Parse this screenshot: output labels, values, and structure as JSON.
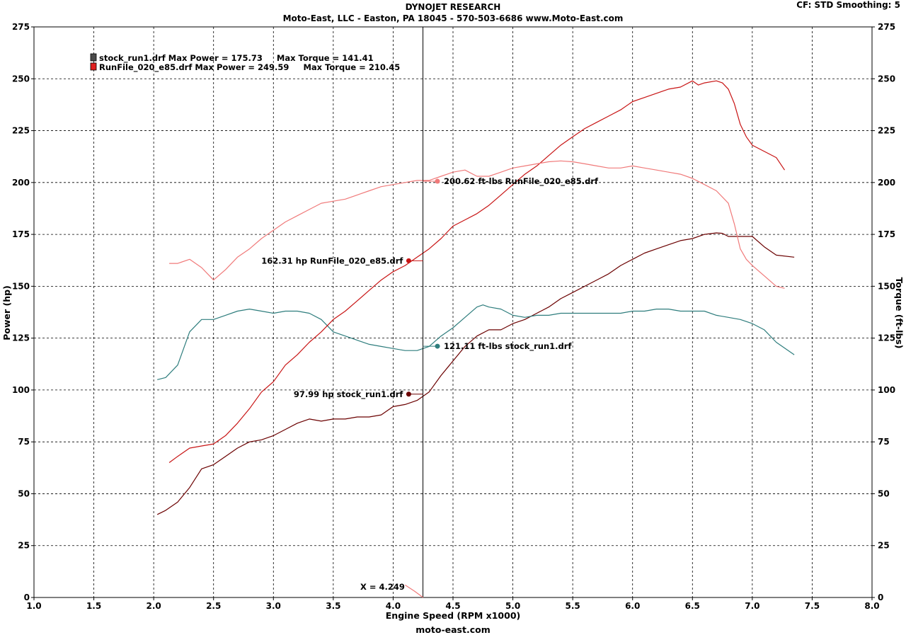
{
  "header": {
    "title": "DYNOJET RESEARCH",
    "subtitle": "Moto-East, LLC - Easton, PA 18045 - 570-503-6686 www.Moto-East.com",
    "settings": "CF: STD  Smoothing: 5"
  },
  "footer": {
    "site": "moto-east.com"
  },
  "colors": {
    "stock_power": "#6b0000",
    "stock_torque": "#2e7d7d",
    "e85_power": "#c81414",
    "e85_torque": "#f07a7a",
    "grid": "#000000"
  },
  "chart_data": {
    "type": "line",
    "xlabel": "Engine Speed (RPM x1000)",
    "ylabel": "Power (hp)",
    "y2label": "Torque (ft-lbs)",
    "xlim": [
      1.0,
      8.0
    ],
    "ylim": [
      0,
      275
    ],
    "y2lim": [
      0,
      275
    ],
    "x_ticks": [
      "1.0",
      "1.5",
      "2.0",
      "2.5",
      "3.0",
      "3.5",
      "4.0",
      "4.5",
      "5.0",
      "5.5",
      "6.0",
      "6.5",
      "7.0",
      "7.5",
      "8.0"
    ],
    "y_ticks": [
      "0",
      "25",
      "50",
      "75",
      "100",
      "125",
      "150",
      "175",
      "200",
      "225",
      "250",
      "275"
    ],
    "grid": true,
    "legend_position": "top-left",
    "legend": [
      {
        "text": "stock_run1.drf Max Power = 175.73     Max Torque = 141.41"
      },
      {
        "text": "RunFile_020_e85.drf Max Power = 249.59     Max Torque = 210.45"
      }
    ],
    "cursor": {
      "x": 4.249,
      "label": "X = 4.249"
    },
    "annotations": [
      {
        "text": "200.62 ft-lbs RunFile_020_e85.drf",
        "x": 4.37,
        "y": 200.6,
        "side": "right",
        "series": "e85_torque"
      },
      {
        "text": "162.31 hp RunFile_020_e85.drf",
        "x": 4.13,
        "y": 162.3,
        "side": "left",
        "series": "e85_power"
      },
      {
        "text": "121.11 ft-lbs stock_run1.drf",
        "x": 4.37,
        "y": 121.1,
        "side": "right",
        "series": "stock_torque"
      },
      {
        "text": "97.99 hp stock_run1.drf",
        "x": 4.13,
        "y": 98.0,
        "side": "left",
        "series": "stock_power"
      }
    ],
    "series": [
      {
        "name": "stock_run1.drf",
        "key": "stock_power",
        "x": [
          2.03,
          2.1,
          2.2,
          2.3,
          2.4,
          2.5,
          2.6,
          2.7,
          2.8,
          2.9,
          3.0,
          3.1,
          3.2,
          3.3,
          3.4,
          3.5,
          3.6,
          3.7,
          3.8,
          3.9,
          4.0,
          4.1,
          4.2,
          4.3,
          4.4,
          4.5,
          4.6,
          4.7,
          4.8,
          4.9,
          5.0,
          5.1,
          5.2,
          5.3,
          5.4,
          5.5,
          5.6,
          5.7,
          5.8,
          5.9,
          6.0,
          6.1,
          6.2,
          6.3,
          6.4,
          6.5,
          6.6,
          6.7,
          6.75,
          6.8,
          6.9,
          7.0,
          7.1,
          7.2,
          7.35
        ],
        "y": [
          40,
          42,
          46,
          53,
          62,
          64,
          68,
          72,
          75,
          76,
          78,
          81,
          84,
          86,
          85,
          86,
          86,
          87,
          87,
          88,
          92,
          93,
          95,
          99,
          107,
          114,
          121,
          126,
          129,
          129,
          132,
          134,
          137,
          140,
          144,
          147,
          150,
          153,
          156,
          160,
          163,
          166,
          168,
          170,
          172,
          173,
          175,
          175.7,
          175.5,
          174,
          174,
          174,
          169,
          165,
          164
        ]
      },
      {
        "name": "stock_run1.drf",
        "key": "stock_torque",
        "x": [
          2.03,
          2.1,
          2.2,
          2.3,
          2.4,
          2.5,
          2.6,
          2.7,
          2.8,
          2.9,
          3.0,
          3.1,
          3.2,
          3.3,
          3.4,
          3.5,
          3.6,
          3.7,
          3.8,
          3.9,
          4.0,
          4.1,
          4.2,
          4.3,
          4.4,
          4.5,
          4.6,
          4.7,
          4.75,
          4.8,
          4.9,
          5.0,
          5.1,
          5.2,
          5.3,
          5.4,
          5.5,
          5.6,
          5.7,
          5.8,
          5.9,
          6.0,
          6.1,
          6.2,
          6.3,
          6.4,
          6.5,
          6.6,
          6.7,
          6.8,
          6.9,
          7.0,
          7.1,
          7.2,
          7.35
        ],
        "y": [
          105,
          106,
          112,
          128,
          134,
          134,
          136,
          138,
          139,
          138,
          137,
          138,
          138,
          137,
          134,
          128,
          126,
          124,
          122,
          121,
          120,
          119,
          119,
          121,
          126,
          130,
          135,
          140,
          141,
          140,
          139,
          136,
          135,
          136,
          136,
          137,
          137,
          137,
          137,
          137,
          137,
          138,
          138,
          139,
          139,
          138,
          138,
          138,
          136,
          135,
          134,
          132,
          129,
          123,
          117
        ]
      },
      {
        "name": "RunFile_020_e85.drf",
        "key": "e85_power",
        "x": [
          2.13,
          2.2,
          2.3,
          2.4,
          2.5,
          2.6,
          2.7,
          2.8,
          2.9,
          3.0,
          3.1,
          3.2,
          3.3,
          3.4,
          3.5,
          3.6,
          3.7,
          3.8,
          3.9,
          4.0,
          4.1,
          4.2,
          4.3,
          4.4,
          4.5,
          4.6,
          4.7,
          4.8,
          4.9,
          5.0,
          5.1,
          5.2,
          5.3,
          5.4,
          5.5,
          5.6,
          5.7,
          5.8,
          5.9,
          6.0,
          6.1,
          6.2,
          6.3,
          6.4,
          6.5,
          6.55,
          6.6,
          6.7,
          6.75,
          6.8,
          6.85,
          6.9,
          6.95,
          7.0,
          7.1,
          7.2,
          7.27
        ],
        "y": [
          65,
          68,
          72,
          73,
          74,
          78,
          84,
          91,
          99,
          104,
          112,
          117,
          123,
          128,
          134,
          138,
          143,
          148,
          153,
          157,
          160,
          164,
          168,
          173,
          179,
          182,
          185,
          189,
          194,
          199,
          204,
          208,
          213,
          218,
          222,
          226,
          229,
          232,
          235,
          239,
          241,
          243,
          245,
          246,
          249,
          247,
          248,
          249,
          248,
          245,
          238,
          228,
          222,
          218,
          215,
          212,
          206
        ]
      },
      {
        "name": "RunFile_020_e85.drf",
        "key": "e85_torque",
        "x": [
          2.13,
          2.2,
          2.3,
          2.4,
          2.5,
          2.6,
          2.7,
          2.8,
          2.9,
          3.0,
          3.1,
          3.2,
          3.3,
          3.4,
          3.5,
          3.6,
          3.7,
          3.8,
          3.9,
          4.0,
          4.1,
          4.2,
          4.3,
          4.4,
          4.5,
          4.6,
          4.7,
          4.8,
          4.9,
          5.0,
          5.1,
          5.2,
          5.3,
          5.4,
          5.5,
          5.6,
          5.7,
          5.8,
          5.9,
          6.0,
          6.1,
          6.2,
          6.3,
          6.4,
          6.5,
          6.6,
          6.7,
          6.8,
          6.85,
          6.9,
          6.95,
          7.0,
          7.1,
          7.2,
          7.27
        ],
        "y": [
          161,
          161,
          163,
          159,
          153,
          158,
          164,
          168,
          173,
          177,
          181,
          184,
          187,
          190,
          191,
          192,
          194,
          196,
          198,
          199,
          200,
          201,
          201,
          203,
          205,
          206,
          203,
          203,
          205,
          207,
          208,
          209,
          210,
          210.4,
          210,
          209,
          208,
          207,
          207,
          208,
          207,
          206,
          205,
          204,
          202,
          199,
          196,
          190,
          180,
          168,
          163,
          160,
          155,
          150,
          149
        ]
      }
    ]
  }
}
